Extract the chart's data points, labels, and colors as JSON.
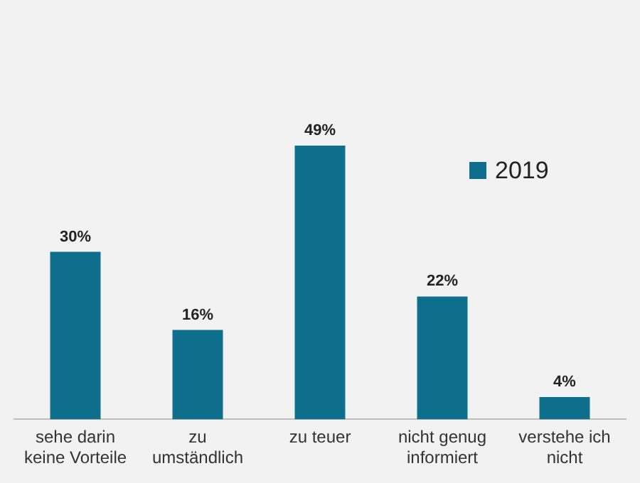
{
  "chart_data": {
    "type": "bar",
    "categories": [
      "sehe darin keine Vorteile",
      "zu umständlich",
      "zu teuer",
      "nicht genug informiert",
      "verstehe ich nicht"
    ],
    "series": [
      {
        "name": "2019",
        "color": "#0e6f8d",
        "values": [
          30,
          16,
          49,
          22,
          4
        ],
        "value_labels": [
          "30%",
          "16%",
          "49%",
          "22%",
          "4%"
        ]
      }
    ],
    "legend": "top right",
    "grid": false
  }
}
